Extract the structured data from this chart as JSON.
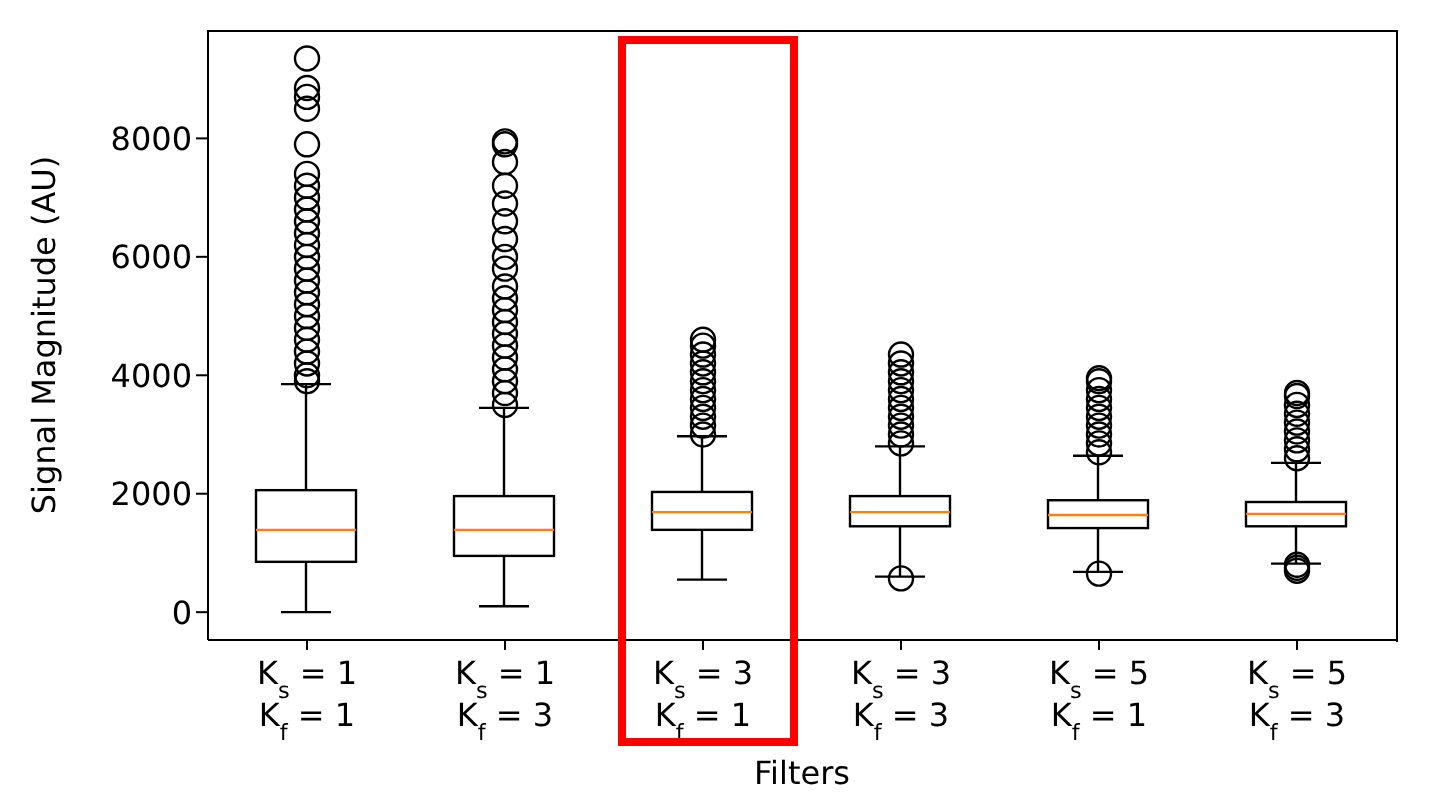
{
  "chart_data": {
    "type": "box",
    "xlabel": "Filters",
    "ylabel": "Signal Magnitude (AU)",
    "categories": [
      "K$_{s}$ = 1\nK$_{f}$ = 1",
      "K$_{s}$ = 1\nK$_{f}$ = 3",
      "K$_{s}$ = 3\nK$_{f}$ = 1",
      "K$_{s}$ = 3\nK$_{f}$ = 3",
      "K$_{s}$ = 5\nK$_{f}$ = 1",
      "K$_{s}$ = 5\nK$_{f}$ = 3"
    ],
    "boxes": [
      {
        "low": 0,
        "q1": 850,
        "median": 1390,
        "q3": 2060,
        "high": 3850,
        "outliers": [
          3900,
          4000,
          4200,
          4400,
          4600,
          4800,
          5000,
          5200,
          5400,
          5600,
          5800,
          6000,
          6200,
          6400,
          6600,
          6800,
          7000,
          7200,
          7400,
          7900,
          8500,
          8700,
          8850,
          9350
        ]
      },
      {
        "low": 100,
        "q1": 950,
        "median": 1390,
        "q3": 1960,
        "high": 3450,
        "outliers": [
          3500,
          3700,
          3900,
          4100,
          4300,
          4500,
          4700,
          4900,
          5100,
          5300,
          5500,
          5800,
          6000,
          6300,
          6600,
          6900,
          7200,
          7600,
          7900,
          7950
        ]
      },
      {
        "low": 550,
        "q1": 1390,
        "median": 1690,
        "q3": 2030,
        "high": 2970,
        "outliers": [
          3000,
          3150,
          3300,
          3450,
          3600,
          3750,
          3900,
          4050,
          4200,
          4350,
          4500,
          4600
        ]
      },
      {
        "low": 600,
        "q1": 1450,
        "median": 1690,
        "q3": 1960,
        "high": 2800,
        "outliers": [
          570,
          2850,
          3000,
          3150,
          3300,
          3450,
          3600,
          3750,
          3900,
          4050,
          4200,
          4350
        ]
      },
      {
        "low": 680,
        "q1": 1420,
        "median": 1640,
        "q3": 1890,
        "high": 2640,
        "outliers": [
          650,
          2700,
          2850,
          3000,
          3150,
          3300,
          3450,
          3600,
          3750,
          3900,
          3950
        ]
      },
      {
        "low": 820,
        "q1": 1450,
        "median": 1660,
        "q3": 1860,
        "high": 2520,
        "outliers": [
          700,
          750,
          800,
          2600,
          2750,
          2900,
          3050,
          3200,
          3350,
          3500,
          3650,
          3700
        ]
      }
    ],
    "color": "#000000",
    "ylim": [
      -470,
      9830
    ],
    "yticks": [
      0,
      2000,
      4000,
      6000,
      8000
    ]
  }
}
